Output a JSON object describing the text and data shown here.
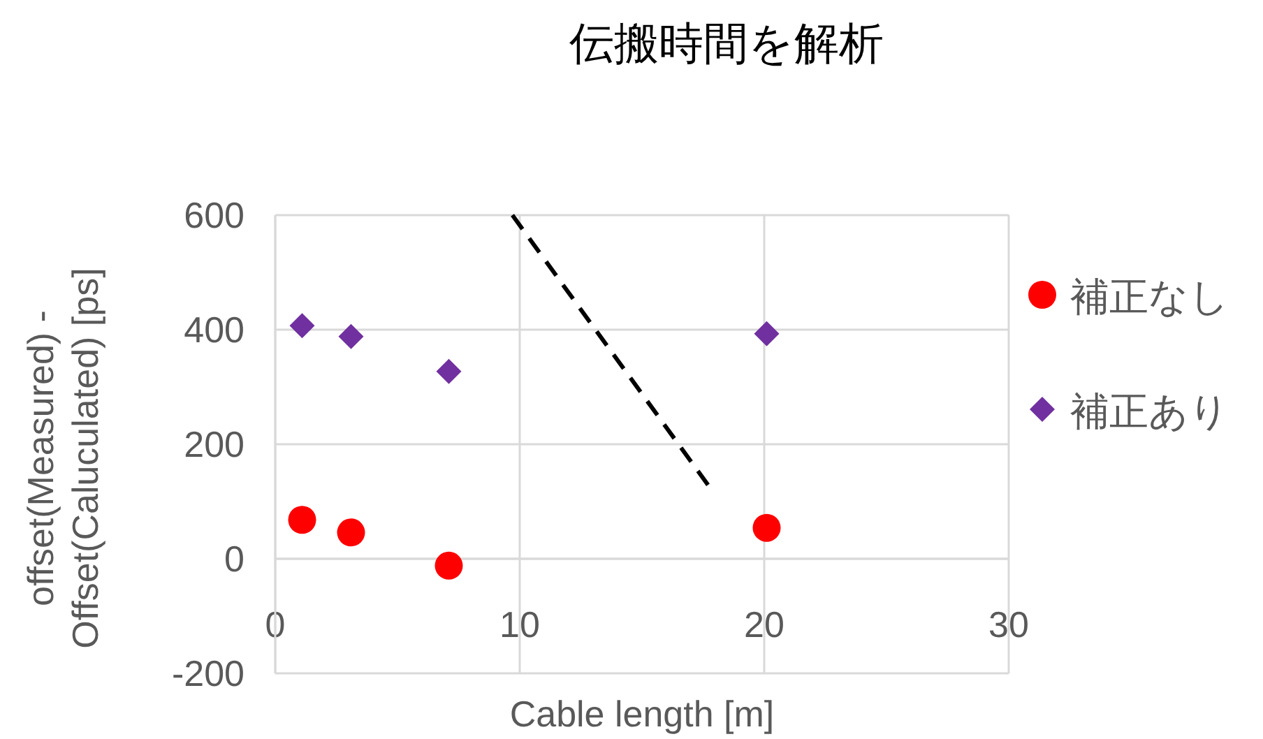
{
  "chart_data": {
    "type": "scatter",
    "title": "伝搬時間を解析",
    "xlabel": "Cable length [m]",
    "ylabel": "offset(Measured) - Offset(Caluculated) [ps]",
    "xlim": [
      0,
      30
    ],
    "xticks": [
      0,
      10,
      20,
      30
    ],
    "ylim": [
      -200,
      600
    ],
    "yticks": [
      -200,
      0,
      200,
      400,
      600
    ],
    "grid": true,
    "legend": "right",
    "series": [
      {
        "name": "補正なし",
        "color": "#ff0000",
        "marker": "circle",
        "x": [
          1.1,
          3.1,
          7.1,
          20.1
        ],
        "values": [
          68,
          46,
          -12,
          54
        ]
      },
      {
        "name": "補正あり",
        "color": "#7030a0",
        "marker": "diamond",
        "x": [
          1.1,
          3.1,
          7.1,
          20.1
        ],
        "values": [
          407,
          388,
          327,
          393
        ]
      },
      {
        "type": "line",
        "color": "#000000",
        "line_style": "dashed",
        "marker": "none",
        "x": [
          9.7,
          17.7
        ],
        "values": [
          600,
          129
        ]
      }
    ]
  }
}
